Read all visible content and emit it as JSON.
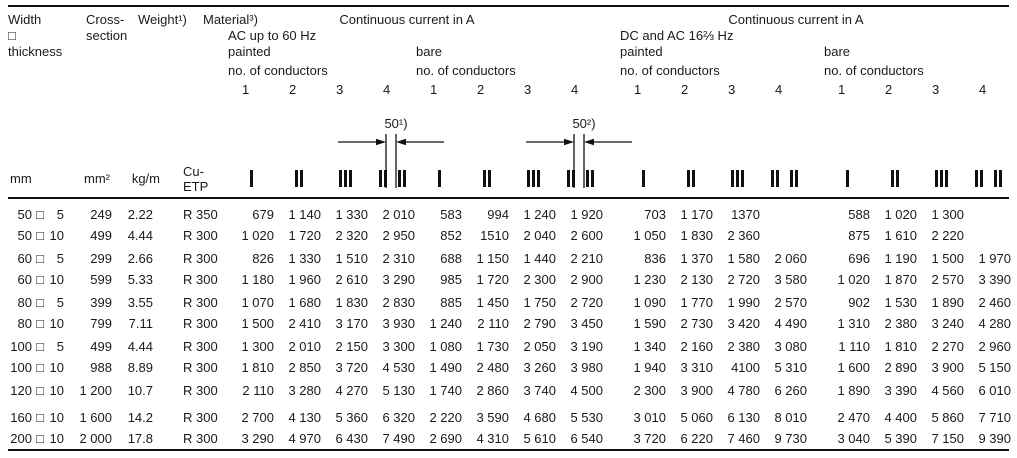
{
  "header": {
    "width_lines": [
      "Width",
      "□",
      "thickness"
    ],
    "cross_lines": [
      "Cross-",
      "section"
    ],
    "weight_label": "Weight¹)",
    "material_label": "Material³)",
    "groups": [
      {
        "title": "Continuous current in A",
        "subtitle": "AC up to 60 Hz",
        "sections": [
          {
            "label": "painted"
          },
          {
            "label": "bare"
          }
        ]
      },
      {
        "title": "Continuous current in A",
        "subtitle": "DC and AC 16⅔ Hz",
        "sections": [
          {
            "label": "painted"
          },
          {
            "label": "bare"
          }
        ]
      }
    ],
    "conductors_label": "no. of conductors",
    "conductor_numbers": [
      "1",
      "2",
      "3",
      "4"
    ]
  },
  "diagram": {
    "labels": [
      "50¹)",
      "50²)"
    ]
  },
  "units": {
    "width": "mm",
    "cross": "mm²",
    "weight": "kg/m",
    "material": "Cu-ETP"
  },
  "icon_counts": [
    1,
    2,
    3,
    4,
    1,
    2,
    3,
    4,
    1,
    2,
    3,
    4,
    1,
    2,
    3,
    4
  ],
  "rows": [
    {
      "width": "50",
      "thickness": "5",
      "cross": "249",
      "weight": "2.22",
      "material": "R 350",
      "gap": 0,
      "values": [
        "679",
        "1 140",
        "1 330",
        "2 010",
        "583",
        "994",
        "1 240",
        "1 920",
        "703",
        "1 170",
        "1370",
        "",
        "588",
        "1 020",
        "1 300",
        ""
      ]
    },
    {
      "width": "50",
      "thickness": "10",
      "cross": "499",
      "weight": "4.44",
      "material": "R 300",
      "gap": 0,
      "values": [
        "1 020",
        "1 720",
        "2 320",
        "2 950",
        "852",
        "1510",
        "2 040",
        "2 600",
        "1 050",
        "1 830",
        "2 360",
        "",
        "875",
        "1 610",
        "2 220",
        ""
      ]
    },
    {
      "width": "60",
      "thickness": "5",
      "cross": "299",
      "weight": "2.66",
      "material": "R 300",
      "gap": 2,
      "values": [
        "826",
        "1 330",
        "1 510",
        "2 310",
        "688",
        "1 150",
        "1 440",
        "2 210",
        "836",
        "1 370",
        "1 580",
        "2 060",
        "696",
        "1 190",
        "1 500",
        "1 970"
      ]
    },
    {
      "width": "60",
      "thickness": "10",
      "cross": "599",
      "weight": "5.33",
      "material": "R 300",
      "gap": 0,
      "values": [
        "1 180",
        "1 960",
        "2 610",
        "3 290",
        "985",
        "1 720",
        "2 300",
        "2 900",
        "1 230",
        "2 130",
        "2 720",
        "3 580",
        "1 020",
        "1 870",
        "2 570",
        "3 390"
      ]
    },
    {
      "width": "80",
      "thickness": "5",
      "cross": "399",
      "weight": "3.55",
      "material": "R 300",
      "gap": 2,
      "values": [
        "1 070",
        "1 680",
        "1 830",
        "2 830",
        "885",
        "1 450",
        "1 750",
        "2 720",
        "1 090",
        "1 770",
        "1 990",
        "2 570",
        "902",
        "1 530",
        "1 890",
        "2 460"
      ]
    },
    {
      "width": "80",
      "thickness": "10",
      "cross": "799",
      "weight": "7.11",
      "material": "R 300",
      "gap": 0,
      "values": [
        "1 500",
        "2 410",
        "3 170",
        "3 930",
        "1 240",
        "2 110",
        "2 790",
        "3 450",
        "1 590",
        "2 730",
        "3 420",
        "4 490",
        "1 310",
        "2 380",
        "3 240",
        "4 280"
      ]
    },
    {
      "width": "100",
      "thickness": "5",
      "cross": "499",
      "weight": "4.44",
      "material": "R 300",
      "gap": 2,
      "values": [
        "1 300",
        "2 010",
        "2 150",
        "3 300",
        "1 080",
        "1 730",
        "2 050",
        "3 190",
        "1 340",
        "2 160",
        "2 380",
        "3 080",
        "1 110",
        "1 810",
        "2 270",
        "2 960"
      ]
    },
    {
      "width": "100",
      "thickness": "10",
      "cross": "988",
      "weight": "8.89",
      "material": "R 300",
      "gap": 0,
      "values": [
        "1 810",
        "2 850",
        "3 720",
        "4 530",
        "1 490",
        "2 480",
        "3 260",
        "3 980",
        "1 940",
        "3 310",
        "4100",
        "5 310",
        "1 600",
        "2 890",
        "3 900",
        "5 150"
      ]
    },
    {
      "width": "120",
      "thickness": "10",
      "cross": "1 200",
      "weight": "10.7",
      "material": "R 300",
      "gap": 2,
      "values": [
        "2 110",
        "3 280",
        "4 270",
        "5 130",
        "1 740",
        "2 860",
        "3 740",
        "4 500",
        "2 300",
        "3 900",
        "4 780",
        "6 260",
        "1 890",
        "3 390",
        "4 560",
        "6 010"
      ]
    },
    {
      "width": "160",
      "thickness": "10",
      "cross": "1 600",
      "weight": "14.2",
      "material": "R 300",
      "gap": 6,
      "values": [
        "2 700",
        "4 130",
        "5 360",
        "6 320",
        "2 220",
        "3 590",
        "4 680",
        "5 530",
        "3 010",
        "5 060",
        "6 130",
        "8 010",
        "2 470",
        "4 400",
        "5 860",
        "7 710"
      ]
    },
    {
      "width": "200",
      "thickness": "10",
      "cross": "2 000",
      "weight": "17.8",
      "material": "R 300",
      "gap": 0,
      "values": [
        "3 290",
        "4 970",
        "6 430",
        "7 490",
        "2 690",
        "4 310",
        "5 610",
        "6 540",
        "3 720",
        "6 220",
        "7 460",
        "9 730",
        "3 040",
        "5 390",
        "7 150",
        "9 390"
      ]
    }
  ]
}
